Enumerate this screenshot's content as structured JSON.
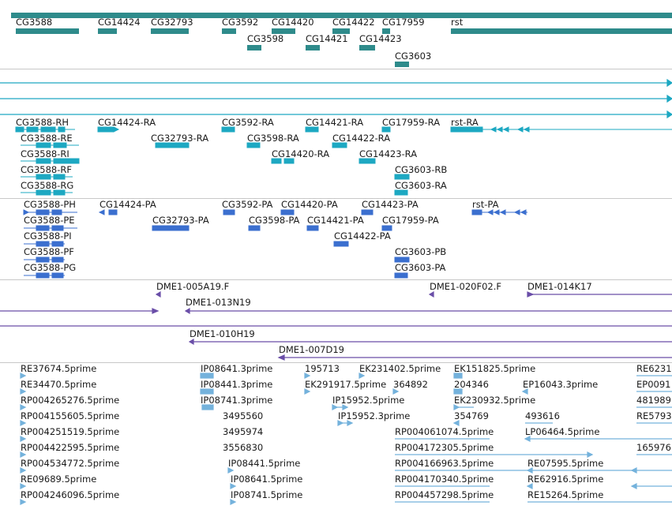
{
  "colors": {
    "gene": "#2e8b8b",
    "transcript": "#1da8c2",
    "protein": "#3b6fcf",
    "bac": "#6a4ea8",
    "est": "#74b2dc",
    "separator": "#c8c8c8"
  },
  "tracks": {
    "genes": {
      "labels": [
        "CG3588",
        "CG14424",
        "CG32793",
        "CG3592",
        "CG14420",
        "CG14422",
        "CG17959",
        "rst",
        "CG3598",
        "CG14421",
        "CG14423",
        "CG3603"
      ]
    },
    "transcripts": {
      "labels": [
        "CG3588-RH",
        "CG14424-RA",
        "CG3592-RA",
        "CG14421-RA",
        "CG17959-RA",
        "rst-RA",
        "CG3588-RE",
        "CG32793-RA",
        "CG3598-RA",
        "CG14422-RA",
        "CG3588-RI",
        "CG14420-RA",
        "CG14423-RA",
        "CG3588-RF",
        "CG3603-RB",
        "CG3588-RG",
        "CG3603-RA"
      ]
    },
    "proteins": {
      "labels": [
        "CG3588-PH",
        "CG14424-PA",
        "CG3592-PA",
        "CG14420-PA",
        "CG14423-PA",
        "rst-PA",
        "CG3588-PE",
        "CG32793-PA",
        "CG3598-PA",
        "CG14421-PA",
        "CG17959-PA",
        "CG3588-PI",
        "CG14422-PA",
        "CG3588-PF",
        "CG3603-PB",
        "CG3588-PG",
        "CG3603-PA"
      ]
    },
    "bacs": {
      "labels": [
        "DME1-005A19.F",
        "DME1-020F02.F",
        "DME1-014K17",
        "DME1-013N19",
        "DME1-010H19",
        "DME1-007D19"
      ]
    },
    "ests": {
      "labels": [
        "RE37674.5prime",
        "IP08641.3prime",
        "195713",
        "EK231402.5prime",
        "EK151825.5prime",
        "RE6231",
        "RE34470.5prime",
        "IP08441.3prime",
        "EK291917.5prime",
        "364892",
        "204346",
        "EP16043.3prime",
        "EP0091",
        "RP004265276.5prime",
        "IP08741.3prime",
        "IP15952.5prime",
        "EK230932.5prime",
        "481989",
        "RP004155605.5prime",
        "3495560",
        "IP15952.3prime",
        "354769",
        "493616",
        "RE5793",
        "RP004251519.5prime",
        "3495974",
        "RP004061074.5prime",
        "LP06464.5prime",
        "RP004422595.5prime",
        "3556830",
        "RP004172305.5prime",
        "165976",
        "RP004534772.5prime",
        "IP08441.5prime",
        "RP004166963.5prime",
        "RE07595.5prime",
        "RE09689.5prime",
        "IP08641.5prime",
        "RP004170340.5prime",
        "RE62916.5prime",
        "RP004246096.5prime",
        "IP08741.5prime",
        "RP004457298.5prime",
        "RE15264.5prime"
      ]
    }
  }
}
